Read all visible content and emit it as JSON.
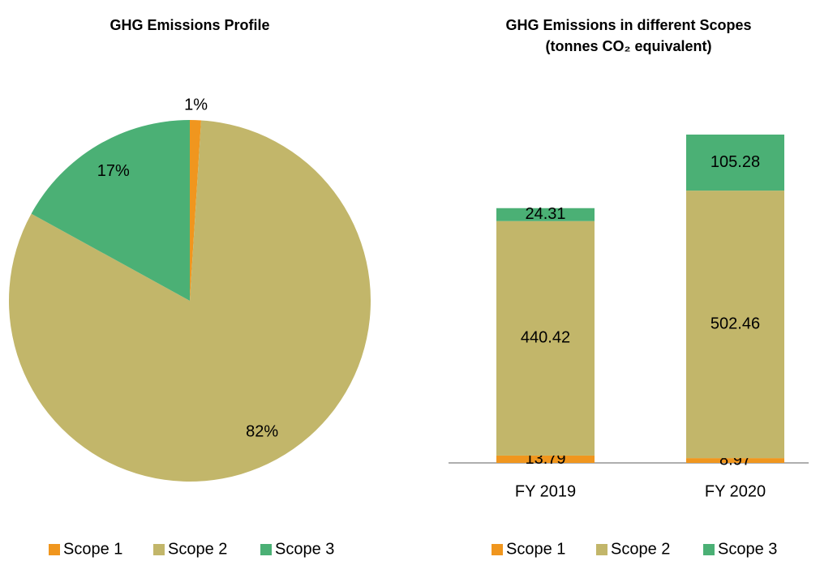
{
  "chart_data": [
    {
      "type": "pie",
      "title": "GHG Emissions Profile",
      "categories": [
        "Scope 1",
        "Scope 2",
        "Scope 3"
      ],
      "values": [
        1,
        82,
        17
      ],
      "value_labels": [
        "1%",
        "82%",
        "17%"
      ],
      "colors": [
        "#f0961e",
        "#c2b66a",
        "#4bb075"
      ]
    },
    {
      "type": "bar",
      "stacked": true,
      "title": "GHG Emissions in different Scopes",
      "subtitle": "(tonnes CO₂ equivalent)",
      "categories": [
        "FY 2019",
        "FY 2020"
      ],
      "series": [
        {
          "name": "Scope 1",
          "color": "#f0961e",
          "values": [
            13.79,
            8.97
          ]
        },
        {
          "name": "Scope 2",
          "color": "#c2b66a",
          "values": [
            440.42,
            502.46
          ]
        },
        {
          "name": "Scope 3",
          "color": "#4bb075",
          "values": [
            24.31,
            105.28
          ]
        }
      ]
    }
  ]
}
